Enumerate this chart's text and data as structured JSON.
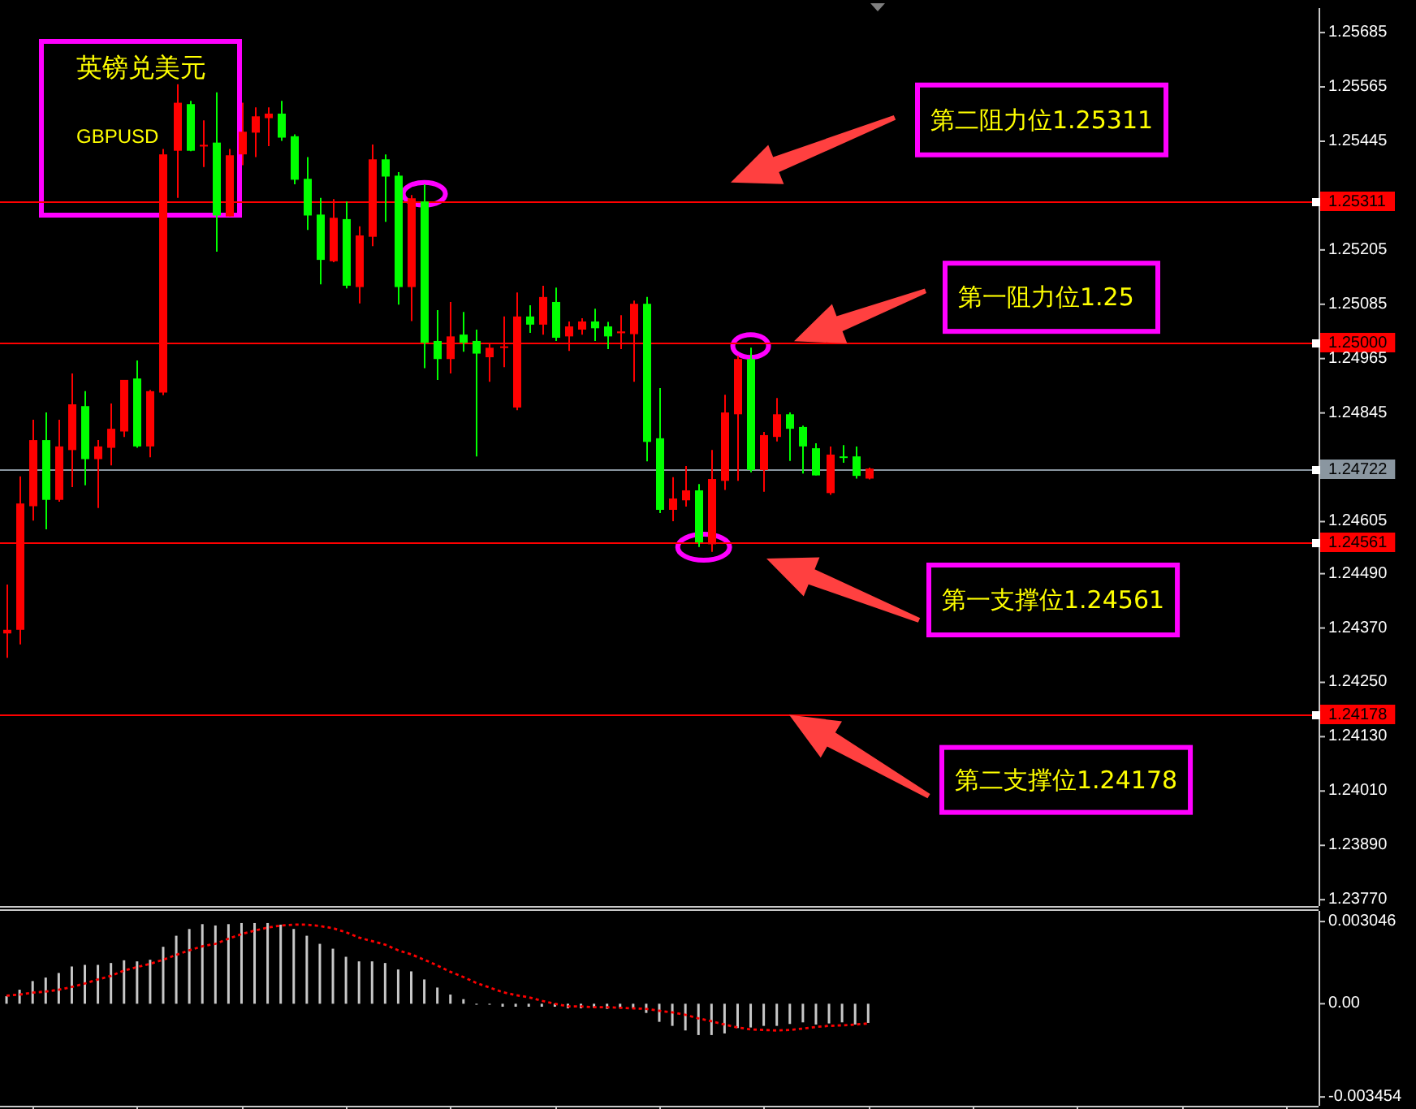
{
  "chart_data": [
    {
      "type": "candlestick",
      "title": "英镑兑美元",
      "subtitle": "GBPUSD",
      "categories": [
        null,
        null,
        null,
        null,
        null,
        null,
        null,
        null,
        null,
        null,
        null,
        null,
        null,
        null,
        null,
        null,
        null,
        null,
        null,
        null,
        null,
        null,
        null,
        null,
        null,
        null,
        null,
        null,
        null,
        null,
        null,
        null,
        null,
        null,
        null,
        null,
        null,
        null,
        null,
        null,
        null,
        null,
        null,
        null,
        null,
        null,
        null,
        null,
        null,
        null,
        null,
        null,
        null,
        null,
        null,
        null,
        null,
        null,
        null,
        null,
        null,
        null,
        null,
        null,
        null,
        null,
        null,
        null,
        null,
        null,
        null,
        null,
        null,
        null,
        null,
        null,
        null,
        null,
        null,
        null,
        null,
        null,
        null,
        null,
        null,
        null,
        null,
        null,
        null,
        null,
        null,
        null,
        null,
        null,
        null,
        null,
        null,
        null,
        null,
        null,
        null
      ],
      "ohlc": [
        [
          1.24358,
          1.24466,
          1.24304,
          1.24366
        ],
        [
          1.24366,
          1.24705,
          1.24334,
          1.24645
        ],
        [
          1.24639,
          1.2483,
          1.24607,
          1.24785
        ],
        [
          1.24785,
          1.24846,
          1.24588,
          1.24653
        ],
        [
          1.24653,
          1.2483,
          1.24649,
          1.24771
        ],
        [
          1.24763,
          1.24932,
          1.24681,
          1.24864
        ],
        [
          1.2486,
          1.24893,
          1.24685,
          1.24743
        ],
        [
          1.24743,
          1.24785,
          1.24635,
          1.24771
        ],
        [
          1.24768,
          1.24866,
          1.24729,
          1.2481
        ],
        [
          1.24804,
          1.24918,
          1.24792,
          1.24918
        ],
        [
          1.24921,
          1.24961,
          1.24768,
          1.24771
        ],
        [
          1.24771,
          1.24896,
          1.24747,
          1.24893
        ],
        [
          1.2489,
          1.25428,
          1.24884,
          1.25416
        ],
        [
          1.25424,
          1.25571,
          1.2532,
          1.2553
        ],
        [
          1.25527,
          1.25534,
          1.25423,
          1.25424
        ],
        [
          1.25435,
          1.25491,
          1.25388,
          1.25437
        ],
        [
          1.25442,
          1.25553,
          1.25201,
          1.25281
        ],
        [
          1.25279,
          1.25428,
          1.25279,
          1.25414
        ],
        [
          1.25416,
          1.2553,
          1.25392,
          1.25466
        ],
        [
          1.25464,
          1.2552,
          1.2541,
          1.255
        ],
        [
          1.25496,
          1.2552,
          1.25434,
          1.25506
        ],
        [
          1.25506,
          1.25534,
          1.25446,
          1.25453
        ],
        [
          1.25456,
          1.2546,
          1.2535,
          1.2536
        ],
        [
          1.25362,
          1.2541,
          1.25249,
          1.25281
        ],
        [
          1.25283,
          1.2532,
          1.25129,
          1.25183
        ],
        [
          1.2518,
          1.25317,
          1.25178,
          1.25276
        ],
        [
          1.25273,
          1.25312,
          1.2512,
          1.25126
        ],
        [
          1.25123,
          1.25257,
          1.25087,
          1.25237
        ],
        [
          1.25234,
          1.25438,
          1.25213,
          1.25405
        ],
        [
          1.25405,
          1.25416,
          1.25267,
          1.25367
        ],
        [
          1.25369,
          1.25377,
          1.25084,
          1.25123
        ],
        [
          1.25123,
          1.25326,
          1.25048,
          1.25319
        ],
        [
          1.25312,
          1.2535,
          1.24944,
          1.25
        ],
        [
          1.25004,
          1.25072,
          1.24918,
          1.24964
        ],
        [
          1.24964,
          1.2509,
          1.24932,
          1.25014
        ],
        [
          1.25018,
          1.25068,
          1.2498,
          1.25
        ],
        [
          1.25004,
          1.25029,
          1.24749,
          1.24976
        ],
        [
          1.24968,
          1.24998,
          1.24914,
          1.24989
        ],
        [
          1.2499,
          1.25058,
          1.24946,
          1.24992
        ],
        [
          1.24857,
          1.25111,
          1.24851,
          1.25058
        ],
        [
          1.25058,
          1.25083,
          1.25022,
          1.2504
        ],
        [
          1.2504,
          1.25126,
          1.25018,
          1.25101
        ],
        [
          1.2509,
          1.25122,
          1.25004,
          1.25011
        ],
        [
          1.25014,
          1.25047,
          1.24982,
          1.25036
        ],
        [
          1.25029,
          1.25054,
          1.25018,
          1.25047
        ],
        [
          1.25047,
          1.25075,
          1.25004,
          1.25032
        ],
        [
          1.25036,
          1.25046,
          1.24986,
          1.25014
        ],
        [
          1.25021,
          1.25061,
          1.24986,
          1.25025
        ],
        [
          1.25019,
          1.25093,
          1.24914,
          1.25086
        ],
        [
          1.25086,
          1.25101,
          1.24738,
          1.24781
        ],
        [
          1.24789,
          1.249,
          1.24624,
          1.24631
        ],
        [
          1.24631,
          1.24703,
          1.24606,
          1.24656
        ],
        [
          1.24652,
          1.24728,
          1.24638,
          1.24674
        ],
        [
          1.24674,
          1.24688,
          1.24549,
          1.24559
        ],
        [
          1.24555,
          1.24763,
          1.24538,
          1.24699
        ],
        [
          1.24695,
          1.24885,
          1.24675,
          1.24846
        ],
        [
          1.24842,
          1.24971,
          1.24695,
          1.24964
        ],
        [
          1.24964,
          1.24989,
          1.24714,
          1.24719
        ],
        [
          1.24719,
          1.24803,
          1.24671,
          1.24796
        ],
        [
          1.24792,
          1.24878,
          1.24782,
          1.24842
        ],
        [
          1.24842,
          1.24846,
          1.24739,
          1.2481
        ],
        [
          1.24814,
          1.24817,
          1.24711,
          1.24771
        ],
        [
          1.24767,
          1.24778,
          1.24707,
          1.24707
        ],
        [
          1.24668,
          1.24771,
          1.24664,
          1.24753
        ],
        [
          1.24749,
          1.24774,
          1.24735,
          1.24748
        ],
        [
          1.24749,
          1.24771,
          1.247,
          1.24706
        ],
        [
          1.247,
          1.24724,
          1.24698,
          1.24722
        ],
        null,
        null,
        null,
        null,
        null,
        null,
        null,
        null,
        null,
        null,
        null,
        null,
        null,
        null,
        null,
        null,
        null,
        null,
        null,
        null,
        null,
        null,
        null,
        null,
        null,
        null,
        null,
        null,
        null,
        null,
        null,
        null,
        null,
        null
      ],
      "colors": [
        "#ff0000",
        "#ff0000",
        "#ff0000",
        "#00ff00",
        "#ff0000",
        "#ff0000",
        "#00ff00",
        "#ff0000",
        "#ff0000",
        "#ff0000",
        "#00ff00",
        "#ff0000",
        "#ff0000",
        "#ff0000",
        "#00ff00",
        "#ff0000",
        "#00ff00",
        "#ff0000",
        "#ff0000",
        "#ff0000",
        "#ff0000",
        "#00ff00",
        "#00ff00",
        "#00ff00",
        "#00ff00",
        "#ff0000",
        "#00ff00",
        "#ff0000",
        "#ff0000",
        "#00ff00",
        "#00ff00",
        "#ff0000",
        "#00ff00",
        "#00ff00",
        "#ff0000",
        "#00ff00",
        "#00ff00",
        "#ff0000",
        "#ff0000",
        "#ff0000",
        "#00ff00",
        "#ff0000",
        "#00ff00",
        "#ff0000",
        "#ff0000",
        "#00ff00",
        "#00ff00",
        "#ff0000",
        "#ff0000",
        "#00ff00",
        "#00ff00",
        "#ff0000",
        "#ff0000",
        "#00ff00",
        "#ff0000",
        "#ff0000",
        "#ff0000",
        "#00ff00",
        "#ff0000",
        "#ff0000",
        "#00ff00",
        "#00ff00",
        "#00ff00",
        "#ff0000",
        "#00ff00",
        "#00ff00",
        "#ff0000",
        null,
        null,
        null,
        null,
        null,
        null,
        null,
        null,
        null,
        null,
        null,
        null,
        null,
        null,
        null,
        null,
        null,
        null,
        null,
        null,
        null,
        null,
        null,
        null,
        null,
        null,
        null,
        null,
        null,
        null,
        null,
        null,
        null,
        null
      ],
      "ylim": [
        1.23756,
        1.25739
      ],
      "yticks": [
        1.25685,
        1.25565,
        1.25445,
        1.25205,
        1.25085,
        1.24965,
        1.24845,
        1.24605,
        {
          "value": 1.2449,
          "label": "1.24490"
        },
        {
          "value": 1.2437,
          "label": "1.24370"
        },
        {
          "value": 1.2425,
          "label": "1.24250"
        },
        {
          "value": 1.2413,
          "label": "1.24130"
        },
        {
          "value": 1.2401,
          "label": "1.24010"
        },
        {
          "value": 1.2389,
          "label": "1.23890"
        },
        {
          "value": 1.2377,
          "label": "1.23770"
        }
      ],
      "ref_lines": [
        {
          "axis": "y",
          "value": 1.25311,
          "label": "1.25311",
          "color": "#ff0000"
        },
        {
          "axis": "y",
          "value": 1.25,
          "label": "1.25000",
          "color": "#ff0000"
        },
        {
          "axis": "y",
          "value": 1.24722,
          "label": "1.24722",
          "color": "#8a96a0"
        },
        {
          "axis": "y",
          "value": 1.24561,
          "label": "1.24561",
          "color": "#ff0000"
        },
        {
          "axis": "y",
          "value": 1.24178,
          "label": "1.24178",
          "color": "#ff0000"
        }
      ],
      "annotations": [
        {
          "text": "第二阻力位1.25311",
          "y": 1.25311
        },
        {
          "text": "第一阻力位1.25",
          "y": 1.25
        },
        {
          "text": "第一支撑位1.24561",
          "y": 1.24561
        },
        {
          "text": "第二支撑位1.24178",
          "y": 1.24178
        }
      ]
    },
    {
      "type": "bar",
      "categories": [
        null,
        null,
        null,
        null,
        null,
        null,
        null,
        null,
        null,
        null,
        null,
        null,
        null,
        null,
        null,
        null,
        null,
        null,
        null,
        null,
        null,
        null,
        null,
        null,
        null,
        null,
        null,
        null,
        null,
        null,
        null,
        null,
        null,
        null,
        null,
        null,
        null,
        null,
        null,
        null,
        null,
        null,
        null,
        null,
        null,
        null,
        null,
        null,
        null,
        null,
        null,
        null,
        null,
        null,
        null,
        null,
        null,
        null,
        null,
        null,
        null,
        null,
        null,
        null,
        null,
        null,
        null,
        null,
        null,
        null,
        null,
        null,
        null,
        null,
        null,
        null,
        null,
        null,
        null,
        null,
        null,
        null,
        null,
        null,
        null,
        null,
        null,
        null,
        null,
        null,
        null,
        null,
        null,
        null,
        null,
        null,
        null,
        null,
        null,
        null,
        null
      ],
      "series": [
        {
          "type": "bar",
          "color": "#c8c8c8",
          "values": [
            0.00028,
            0.00052,
            0.00084,
            0.00097,
            0.00114,
            0.00138,
            0.00144,
            0.00144,
            0.00151,
            0.00161,
            0.00157,
            0.00163,
            0.00211,
            0.00252,
            0.00277,
            0.00295,
            0.0029,
            0.00295,
            0.00299,
            0.00299,
            0.00299,
            0.00293,
            0.00277,
            0.00252,
            0.00222,
            0.00204,
            0.00174,
            0.00157,
            0.00157,
            0.00151,
            0.00127,
            0.0012,
            0.0009,
            0.0006,
            0.00034,
            0.00017,
            0,
            0,
            -0.00011,
            -0.00011,
            -0.00011,
            -0.00011,
            -0.00011,
            -0.00017,
            -0.00017,
            -0.00015,
            -0.00019,
            -0.00015,
            -0.00017,
            -0.00034,
            -0.00067,
            -0.00082,
            -0.00099,
            -0.00116,
            -0.00116,
            -0.0011,
            -0.0009,
            -0.00088,
            -0.00082,
            -0.00082,
            -0.00075,
            -0.00069,
            -0.00077,
            -0.00073,
            -0.00069,
            -0.00077,
            -0.00071,
            null,
            null,
            null,
            null,
            null,
            null,
            null,
            null,
            null,
            null,
            null,
            null,
            null,
            null,
            null,
            null,
            null,
            null,
            null,
            null,
            null,
            null,
            null,
            null,
            null,
            null,
            null,
            null,
            null,
            null,
            null,
            null,
            null,
            null
          ]
        },
        {
          "type": "line",
          "color": "#ff0000",
          "line_style": "dotted",
          "values": [
            0.0003,
            0.00034,
            0.00041,
            0.00045,
            0.00052,
            0.00062,
            0.00075,
            0.0009,
            0.00103,
            0.00123,
            0.00136,
            0.00148,
            0.00163,
            0.00181,
            0.00198,
            0.00213,
            0.00222,
            0.00241,
            0.00258,
            0.00271,
            0.00282,
            0.0029,
            0.00293,
            0.00293,
            0.00288,
            0.0028,
            0.00265,
            0.00245,
            0.00232,
            0.00219,
            0.00198,
            0.00183,
            0.00163,
            0.00142,
            0.00118,
            0.00099,
            0.00077,
            0.0006,
            0.00043,
            0.00032,
            0.00024,
            0.00011,
            0,
            -0.0001,
            -0.0001,
            -0.00013,
            -0.00013,
            -0.00015,
            -0.00017,
            -0.00019,
            -0.00026,
            -0.00032,
            -0.00041,
            -0.00054,
            -0.00065,
            -0.00077,
            -0.00088,
            -0.00095,
            -0.00097,
            -0.00099,
            -0.00097,
            -0.00092,
            -0.00086,
            -0.00082,
            -0.0008,
            -0.00077,
            -0.00073,
            null,
            null,
            null,
            null,
            null,
            null,
            null,
            null,
            null,
            null,
            null,
            null,
            null,
            null,
            null,
            null,
            null,
            null,
            null,
            null,
            null,
            null,
            null,
            null,
            null,
            null,
            null,
            null,
            null,
            null,
            null,
            null,
            null,
            null
          ]
        }
      ],
      "ylim": [
        -0.00378,
        0.00344
      ],
      "yticks": [
        0.003046,
        {
          "value": 0,
          "label": "0.00"
        },
        -0.003454
      ]
    }
  ]
}
